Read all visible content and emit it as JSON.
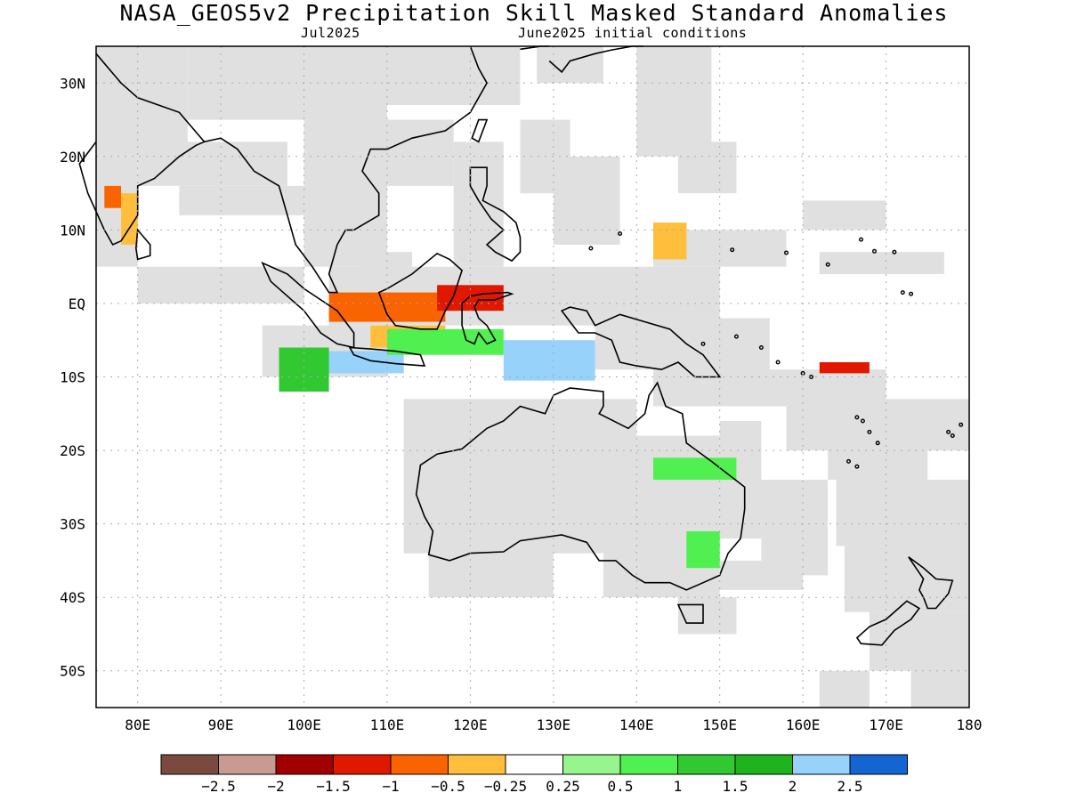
{
  "header": {
    "title": "NASA_GEOS5v2 Precipitation Skill Masked Standard Anomalies",
    "target_month": "Jul2025",
    "init_conditions": "June2025 initial conditions"
  },
  "map": {
    "lon_range": [
      75,
      180
    ],
    "lat_range": [
      -55,
      35
    ],
    "lat_ticks": [
      {
        "value": 30,
        "label": "30N"
      },
      {
        "value": 20,
        "label": "20N"
      },
      {
        "value": 10,
        "label": "10N"
      },
      {
        "value": 0,
        "label": "EQ"
      },
      {
        "value": -10,
        "label": "10S"
      },
      {
        "value": -20,
        "label": "20S"
      },
      {
        "value": -30,
        "label": "30S"
      },
      {
        "value": -40,
        "label": "40S"
      },
      {
        "value": -50,
        "label": "50S"
      }
    ],
    "lon_ticks": [
      {
        "value": 80,
        "label": "80E"
      },
      {
        "value": 90,
        "label": "90E"
      },
      {
        "value": 100,
        "label": "100E"
      },
      {
        "value": 110,
        "label": "110E"
      },
      {
        "value": 120,
        "label": "120E"
      },
      {
        "value": 130,
        "label": "130E"
      },
      {
        "value": 140,
        "label": "140E"
      },
      {
        "value": 150,
        "label": "150E"
      },
      {
        "value": 160,
        "label": "160E"
      },
      {
        "value": 170,
        "label": "170E"
      },
      {
        "value": 180,
        "label": "180"
      }
    ],
    "grid": "dotted",
    "skill_mask_color": "#e0e0e0"
  },
  "colorbar": {
    "colors": [
      "#7a4a3e",
      "#c89a90",
      "#a00000",
      "#e01800",
      "#fa6400",
      "#ffbe3c",
      "#ffffff",
      "#96f58c",
      "#50f050",
      "#32c832",
      "#1eb41e",
      "#96d2fa",
      "#1464d2"
    ],
    "labels": [
      "−2.5",
      "−2",
      "−1.5",
      "−1",
      "−0.5",
      "−0.25",
      "0.25",
      "0.5",
      "1",
      "1.5",
      "2",
      "2.5"
    ]
  },
  "anomaly_regions": [
    {
      "name": "borneo-south-dry",
      "category": "-1",
      "lon": [
        103,
        117
      ],
      "lat": [
        -2.5,
        1.5
      ]
    },
    {
      "name": "sulawesi-north-dry",
      "category": "-1.5",
      "lon": [
        116,
        124
      ],
      "lat": [
        -1,
        2.5
      ]
    },
    {
      "name": "borneo-south-moderate-dry",
      "category": "-0.5",
      "lon": [
        108,
        117
      ],
      "lat": [
        -6,
        -3
      ]
    },
    {
      "name": "sumatra-java-wet",
      "category": "2.5",
      "lon": [
        101,
        112
      ],
      "lat": [
        -9.5,
        -6.5
      ]
    },
    {
      "name": "banda-sea-wet",
      "category": "2.5",
      "lon": [
        124,
        135
      ],
      "lat": [
        -10.5,
        -5
      ]
    },
    {
      "name": "java-sea-moderate-wet",
      "category": "1",
      "lon": [
        110,
        124
      ],
      "lat": [
        -7,
        -3.5
      ]
    },
    {
      "name": "indian-ocean-wet",
      "category": "1.5",
      "lon": [
        97,
        103
      ],
      "lat": [
        -12,
        -6
      ]
    },
    {
      "name": "sri-lanka-dry",
      "category": "-0.5",
      "lon": [
        78,
        80
      ],
      "lat": [
        8,
        15
      ]
    },
    {
      "name": "india-west-coast-dry",
      "category": "-1",
      "lon": [
        76,
        78
      ],
      "lat": [
        13,
        16
      ]
    },
    {
      "name": "philippine-sea-dry",
      "category": "-0.5",
      "lon": [
        142,
        146
      ],
      "lat": [
        6,
        11
      ]
    },
    {
      "name": "solomon-sea-dry",
      "category": "-1.5",
      "lon": [
        162,
        168
      ],
      "lat": [
        -9.5,
        -8
      ]
    },
    {
      "name": "queensland-wet",
      "category": "1",
      "lon": [
        142,
        152
      ],
      "lat": [
        -24,
        -21
      ]
    },
    {
      "name": "nsw-wet",
      "category": "1",
      "lon": [
        146,
        150
      ],
      "lat": [
        -36,
        -31
      ]
    }
  ]
}
